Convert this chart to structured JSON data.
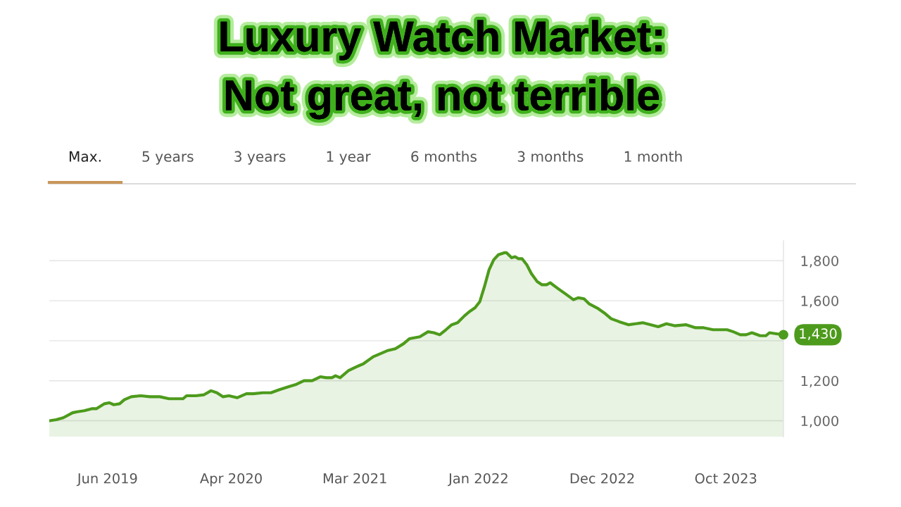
{
  "chart_data": {
    "type": "area",
    "title": "Luxury Watch Market:\nNot great, not terrible",
    "annotations": [
      "Max.",
      "5 years",
      "3 years",
      "1 year",
      "6 months",
      "3 months",
      "1 month",
      {
        "text": "1,430",
        "x": "2024-03-16",
        "y": 1430
      }
    ],
    "x": [
      "2019-01-14",
      "2019-02-01",
      "2019-02-19",
      "2019-03-15",
      "2019-03-27",
      "2019-04-14",
      "2019-05-03",
      "2019-05-15",
      "2019-06-05",
      "2019-06-17",
      "2019-06-29",
      "2019-07-14",
      "2019-07-26",
      "2019-08-13",
      "2019-09-06",
      "2019-09-30",
      "2019-10-25",
      "2019-11-18",
      "2019-12-12",
      "2019-12-24",
      "2020-01-02",
      "2020-01-26",
      "2020-02-16",
      "2020-03-05",
      "2020-03-20",
      "2020-04-05",
      "2020-04-20",
      "2020-05-11",
      "2020-06-04",
      "2020-06-22",
      "2020-07-16",
      "2020-08-06",
      "2020-08-27",
      "2020-09-20",
      "2020-10-08",
      "2020-10-30",
      "2020-11-20",
      "2020-12-11",
      "2020-12-26",
      "2021-01-10",
      "2021-01-19",
      "2021-01-31",
      "2021-02-21",
      "2021-03-14",
      "2021-04-01",
      "2021-04-26",
      "2021-05-14",
      "2021-06-01",
      "2021-06-22",
      "2021-07-13",
      "2021-07-28",
      "2021-08-24",
      "2021-09-14",
      "2021-09-29",
      "2021-10-14",
      "2021-10-30",
      "2021-11-14",
      "2021-11-29",
      "2021-12-17",
      "2021-12-29",
      "2022-01-13",
      "2022-01-25",
      "2022-02-06",
      "2022-02-18",
      "2022-03-02",
      "2022-03-14",
      "2022-03-29",
      "2022-04-04",
      "2022-04-17",
      "2022-04-26",
      "2022-05-05",
      "2022-05-14",
      "2022-05-26",
      "2022-06-07",
      "2022-06-22",
      "2022-07-04",
      "2022-07-16",
      "2022-07-25",
      "2022-08-15",
      "2022-09-02",
      "2022-09-23",
      "2022-10-05",
      "2022-10-20",
      "2022-11-02",
      "2022-11-26",
      "2022-12-14",
      "2022-12-29",
      "2023-01-19",
      "2023-02-12",
      "2023-03-02",
      "2023-03-20",
      "2023-04-10",
      "2023-04-29",
      "2023-05-20",
      "2023-06-10",
      "2023-07-10",
      "2023-08-03",
      "2023-08-24",
      "2023-09-17",
      "2023-10-23",
      "2023-11-08",
      "2023-11-26",
      "2023-12-11",
      "2023-12-26",
      "2024-01-16",
      "2024-01-31",
      "2024-02-09",
      "2024-02-27",
      "2024-03-16"
    ],
    "series": [
      {
        "color": "#4d9b1c",
        "values": [
          1000,
          1005,
          1015,
          1040,
          1045,
          1050,
          1060,
          1060,
          1085,
          1090,
          1080,
          1085,
          1105,
          1120,
          1125,
          1120,
          1120,
          1110,
          1110,
          1110,
          1125,
          1125,
          1130,
          1150,
          1140,
          1120,
          1125,
          1115,
          1135,
          1135,
          1140,
          1140,
          1155,
          1170,
          1180,
          1200,
          1200,
          1220,
          1215,
          1215,
          1225,
          1215,
          1250,
          1270,
          1285,
          1320,
          1335,
          1350,
          1360,
          1385,
          1410,
          1420,
          1445,
          1440,
          1430,
          1455,
          1480,
          1490,
          1525,
          1545,
          1565,
          1595,
          1670,
          1755,
          1805,
          1830,
          1840,
          1840,
          1815,
          1820,
          1810,
          1810,
          1780,
          1735,
          1695,
          1680,
          1680,
          1690,
          1660,
          1635,
          1605,
          1615,
          1610,
          1585,
          1560,
          1535,
          1510,
          1495,
          1480,
          1485,
          1490,
          1480,
          1470,
          1485,
          1475,
          1480,
          1465,
          1465,
          1455,
          1455,
          1445,
          1430,
          1430,
          1440,
          1425,
          1425,
          1440,
          1435,
          1430
        ]
      }
    ],
    "xlim": [
      "2019-01-14",
      "2024-03-16"
    ],
    "xticks": [
      {
        "value": "2019-06-13",
        "label": "Jun 2019"
      },
      {
        "value": "2020-04-26",
        "label": "Apr 2020"
      },
      {
        "value": "2021-03-10",
        "label": "Mar 2021"
      },
      {
        "value": "2022-01-22",
        "label": "Jan 2022"
      },
      {
        "value": "2022-12-06",
        "label": "Dec 2022"
      },
      {
        "value": "2023-10-20",
        "label": "Oct 2023"
      }
    ],
    "ylim": [
      920,
      1900
    ],
    "yticks": [
      {
        "value": 1000,
        "label": "1,000"
      },
      {
        "value": 1200,
        "label": "1,200"
      },
      {
        "value": 1400,
        "label": null
      },
      {
        "value": 1600,
        "label": "1,600"
      },
      {
        "value": 1800,
        "label": "1,800"
      }
    ],
    "grid": "y"
  }
}
